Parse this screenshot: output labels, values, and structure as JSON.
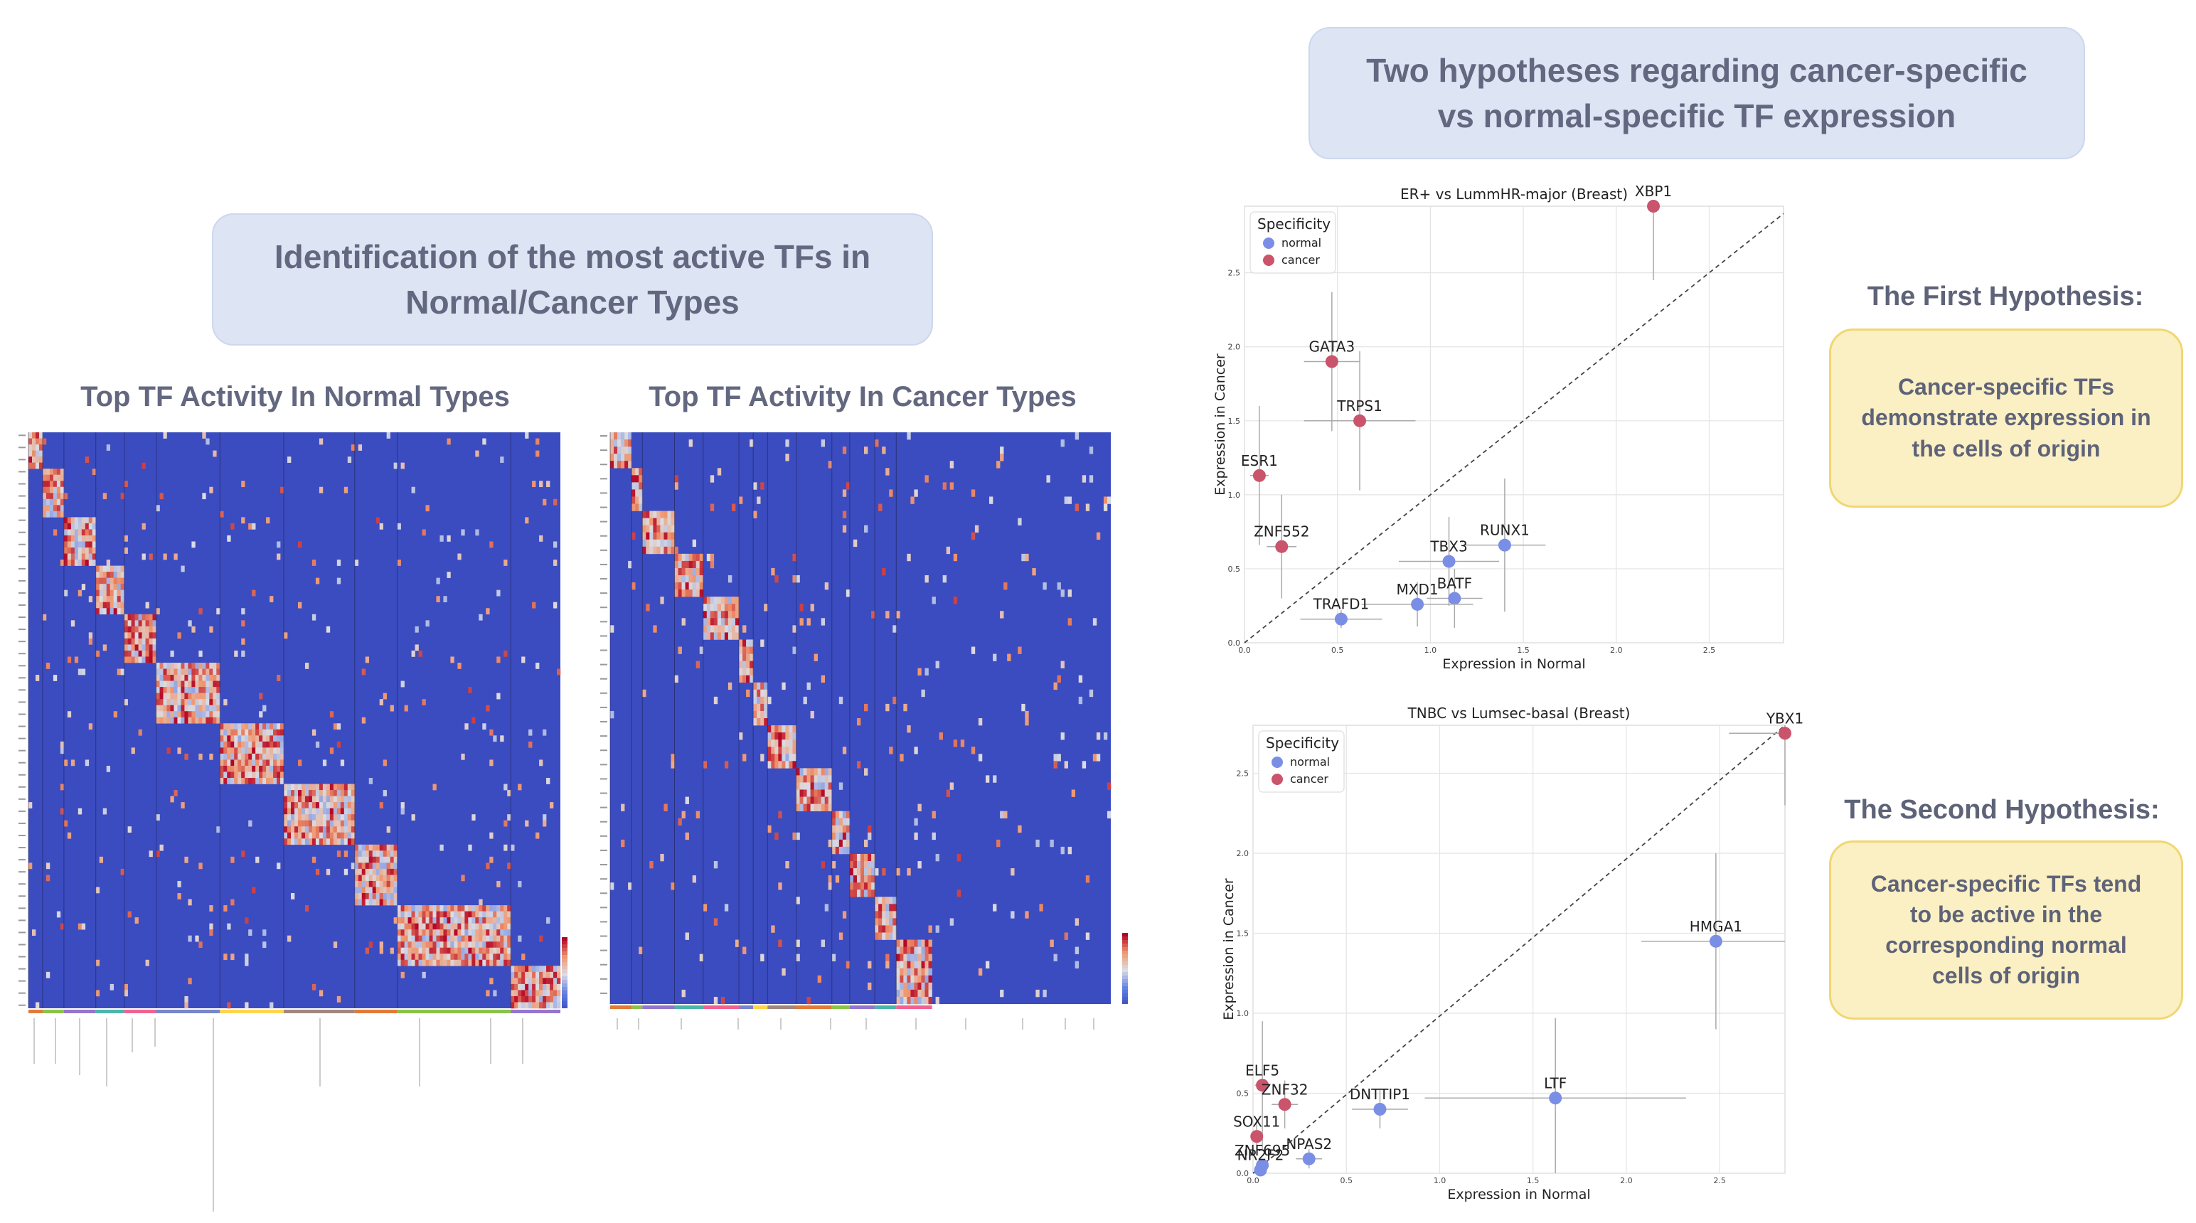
{
  "left_title": {
    "line1": "Identification of the most active TFs in",
    "line2": "Normal/Cancer Types"
  },
  "right_title": {
    "line1": "Two hypotheses regarding cancer-specific",
    "line2": "vs normal-specific TF expression"
  },
  "heatmap_normal": {
    "title": "Top TF Activity In Normal Types"
  },
  "heatmap_cancer": {
    "title": "Top TF Activity In Cancer Types"
  },
  "hypothesis1": {
    "title": "The First Hypothesis:",
    "body": "Cancer-specific TFs demonstrate expression in the cells of origin"
  },
  "hypothesis2": {
    "title": "The Second Hypothesis:",
    "body": "Cancer-specific TFs tend to be active in the corresponding normal cells of origin"
  },
  "colors": {
    "normal": "#7b8ee6",
    "cancer": "#c9546c",
    "heat_low": "#3b4cc0",
    "heat_high": "#b40426"
  },
  "chart_data": [
    {
      "type": "scatter",
      "title": "ER+ vs LummHR-major (Breast)",
      "xlabel": "Expression in Normal",
      "ylabel": "Expression in Cancer",
      "xlim": [
        0,
        2.9
      ],
      "ylim": [
        0,
        2.95
      ],
      "xticks": [
        "0.0",
        "0.5",
        "1.0",
        "1.5",
        "2.0",
        "2.5"
      ],
      "yticks": [
        "0.0",
        "0.5",
        "1.0",
        "1.5",
        "2.0",
        "2.5"
      ],
      "legend": {
        "title": "Specificity",
        "entries": [
          "normal",
          "cancer"
        ],
        "placement": "top-left"
      },
      "grid": true,
      "points": [
        {
          "label": "XBP1",
          "group": "cancer",
          "x": 2.2,
          "y": 2.95,
          "yerr": 0.5
        },
        {
          "label": "GATA3",
          "group": "cancer",
          "x": 0.47,
          "y": 1.9,
          "xerr": 0.15,
          "yerr": 0.47
        },
        {
          "label": "TRPS1",
          "group": "cancer",
          "x": 0.62,
          "y": 1.5,
          "xerr": 0.3,
          "yerr": 0.47
        },
        {
          "label": "ESR1",
          "group": "cancer",
          "x": 0.08,
          "y": 1.13,
          "xerr": 0.05,
          "yerr": 0.47
        },
        {
          "label": "ZNF552",
          "group": "cancer",
          "x": 0.2,
          "y": 0.65,
          "xerr": 0.08,
          "yerr": 0.35
        },
        {
          "label": "RUNX1",
          "group": "normal",
          "x": 1.4,
          "y": 0.66,
          "xerr": 0.22,
          "yerr": 0.45
        },
        {
          "label": "TBX3",
          "group": "normal",
          "x": 1.1,
          "y": 0.55,
          "xerr": 0.27,
          "yerr": 0.3
        },
        {
          "label": "BATF",
          "group": "normal",
          "x": 1.13,
          "y": 0.3,
          "xerr": 0.15,
          "yerr": 0.2
        },
        {
          "label": "MXD1",
          "group": "normal",
          "x": 0.93,
          "y": 0.26,
          "xerr": 0.3,
          "yerr": 0.15
        },
        {
          "label": "TRAFD1",
          "group": "normal",
          "x": 0.52,
          "y": 0.16,
          "xerr": 0.22,
          "yerr": 0.06
        }
      ]
    },
    {
      "type": "scatter",
      "title": "TNBC vs Lumsec-basal (Breast)",
      "xlabel": "Expression in Normal",
      "ylabel": "Expression in Cancer",
      "xlim": [
        0,
        2.85
      ],
      "ylim": [
        0,
        2.8
      ],
      "xticks": [
        "0.0",
        "0.5",
        "1.0",
        "1.5",
        "2.0",
        "2.5"
      ],
      "yticks": [
        "0.0",
        "0.5",
        "1.0",
        "1.5",
        "2.0",
        "2.5"
      ],
      "legend": {
        "title": "Specificity",
        "entries": [
          "normal",
          "cancer"
        ],
        "placement": "top-left"
      },
      "grid": true,
      "points": [
        {
          "label": "YBX1",
          "group": "cancer",
          "x": 2.85,
          "y": 2.75,
          "xerr": 0.3,
          "yerr": 0.45
        },
        {
          "label": "HMGA1",
          "group": "normal",
          "x": 2.48,
          "y": 1.45,
          "xerr": 0.4,
          "yerr": 0.55
        },
        {
          "label": "LTF",
          "group": "normal",
          "x": 1.62,
          "y": 0.47,
          "xerr": 0.7,
          "yerr": 0.5
        },
        {
          "label": "DNTTIP1",
          "group": "normal",
          "x": 0.68,
          "y": 0.4,
          "xerr": 0.15,
          "yerr": 0.12
        },
        {
          "label": "ELF5",
          "group": "cancer",
          "x": 0.05,
          "y": 0.55,
          "xerr": 0.04,
          "yerr": 0.4
        },
        {
          "label": "ZNF32",
          "group": "cancer",
          "x": 0.17,
          "y": 0.43,
          "xerr": 0.07,
          "yerr": 0.15
        },
        {
          "label": "SOX11",
          "group": "cancer",
          "x": 0.02,
          "y": 0.23,
          "xerr": 0.02,
          "yerr": 0.1
        },
        {
          "label": "NPAS2",
          "group": "normal",
          "x": 0.3,
          "y": 0.09,
          "xerr": 0.07,
          "yerr": 0.06
        },
        {
          "label": "ZNF695",
          "group": "normal",
          "x": 0.05,
          "y": 0.05,
          "xerr": 0.03,
          "yerr": 0.03
        },
        {
          "label": "NR2F2",
          "group": "normal",
          "x": 0.04,
          "y": 0.02,
          "xerr": 0.03,
          "yerr": 0.02
        }
      ]
    }
  ]
}
